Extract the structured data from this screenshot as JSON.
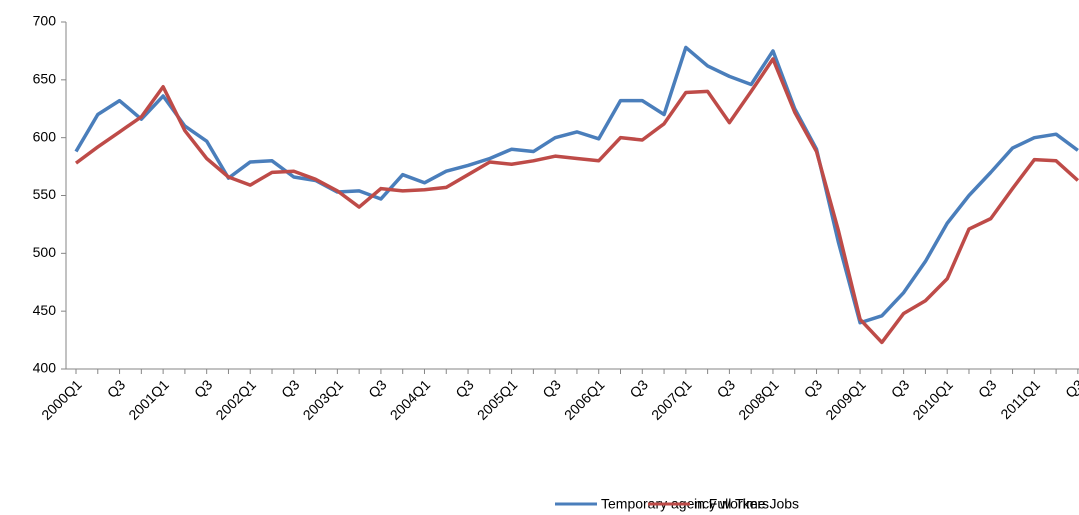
{
  "chart_data": {
    "type": "line",
    "categories": [
      "2000Q1",
      null,
      "Q3",
      null,
      "2001Q1",
      null,
      "Q3",
      null,
      "2002Q1",
      null,
      "Q3",
      null,
      "2003Q1",
      null,
      "Q3",
      null,
      "2004Q1",
      null,
      "Q3",
      null,
      "2005Q1",
      null,
      "Q3",
      null,
      "2006Q1",
      null,
      "Q3",
      null,
      "2007Q1",
      null,
      "Q3",
      null,
      "2008Q1",
      null,
      "Q3",
      null,
      "2009Q1",
      null,
      "Q3",
      null,
      "2010Q1",
      null,
      "Q3",
      null,
      "2011Q1",
      null,
      "Q3"
    ],
    "series": [
      {
        "name": "Temporary agency workers",
        "color": "#4a7ebb",
        "values": [
          588,
          620,
          632,
          616,
          636,
          610,
          597,
          565,
          579,
          580,
          566,
          563,
          553,
          554,
          547,
          568,
          561,
          571,
          576,
          582,
          590,
          588,
          600,
          605,
          599,
          632,
          632,
          620,
          678,
          662,
          653,
          646,
          675,
          625,
          590,
          510,
          440,
          446,
          466,
          493,
          526,
          550,
          570,
          591,
          600,
          603,
          589
        ]
      },
      {
        "name": "in Full Time Jobs",
        "color": "#be4b48",
        "values": [
          578,
          592,
          605,
          618,
          644,
          606,
          582,
          566,
          559,
          570,
          571,
          564,
          554,
          540,
          556,
          554,
          555,
          557,
          568,
          579,
          577,
          580,
          584,
          582,
          580,
          600,
          598,
          612,
          639,
          640,
          613,
          640,
          668,
          622,
          588,
          520,
          443,
          423,
          448,
          459,
          478,
          521,
          530,
          556,
          581,
          580,
          563
        ]
      }
    ],
    "ylim": [
      400,
      700
    ],
    "yticks": [
      400,
      450,
      500,
      550,
      600,
      650,
      700
    ],
    "legend": "bottom"
  }
}
